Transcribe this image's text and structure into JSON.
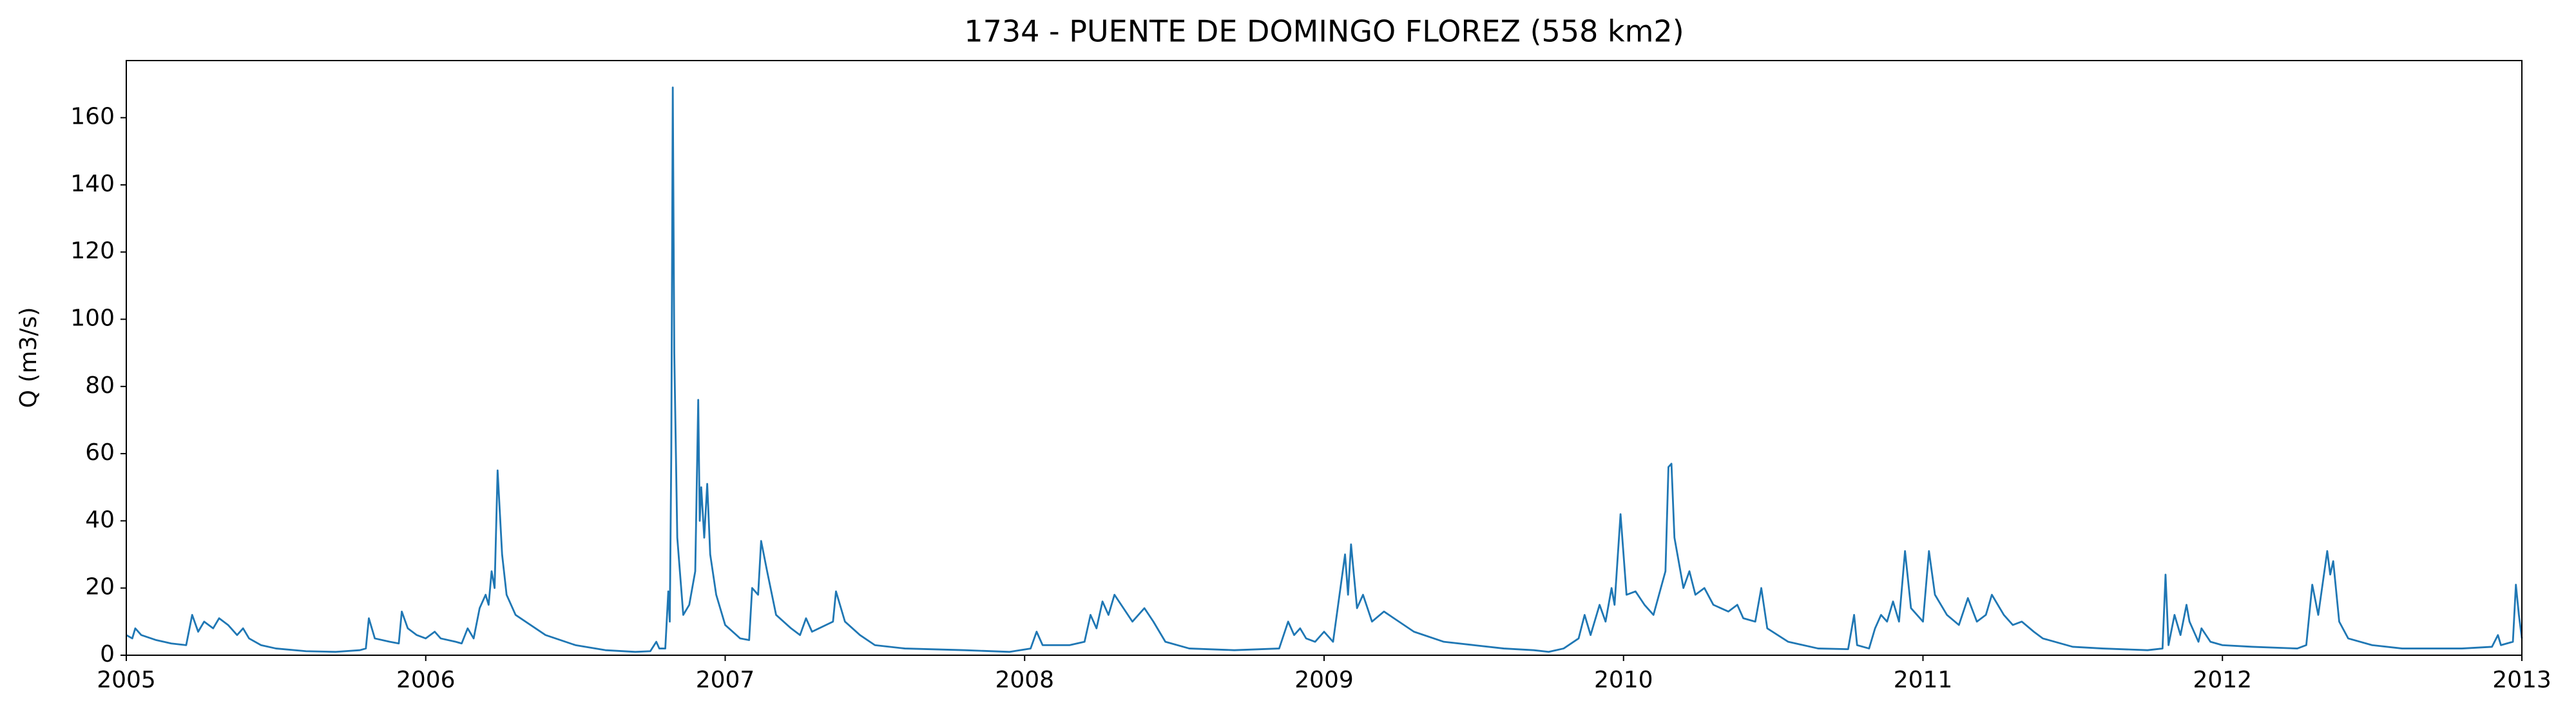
{
  "chart_data": {
    "type": "line",
    "title": "1734 - PUENTE DE DOMINGO FLOREZ (558 km2)",
    "ylabel": "Q (m3/s)",
    "color": "#1f77b4",
    "xlim": [
      2005,
      2013
    ],
    "xticks": [
      2005,
      2006,
      2007,
      2008,
      2009,
      2010,
      2011,
      2012,
      2013
    ],
    "ylim": [
      0,
      177
    ],
    "yticks": [
      0,
      20,
      40,
      60,
      80,
      100,
      120,
      140,
      160
    ],
    "x": [
      2005.0,
      2005.02,
      2005.03,
      2005.05,
      2005.1,
      2005.15,
      2005.2,
      2005.22,
      2005.24,
      2005.26,
      2005.29,
      2005.31,
      2005.34,
      2005.37,
      2005.39,
      2005.41,
      2005.45,
      2005.5,
      2005.6,
      2005.7,
      2005.78,
      2005.8,
      2005.81,
      2005.83,
      2005.88,
      2005.91,
      2005.92,
      2005.94,
      2005.97,
      2006.0,
      2006.03,
      2006.05,
      2006.1,
      2006.12,
      2006.14,
      2006.16,
      2006.18,
      2006.2,
      2006.21,
      2006.22,
      2006.23,
      2006.24,
      2006.255,
      2006.27,
      2006.3,
      2006.35,
      2006.4,
      2006.5,
      2006.6,
      2006.7,
      2006.75,
      2006.77,
      2006.78,
      2006.8,
      2006.81,
      2006.815,
      2006.82,
      2006.825,
      2006.83,
      2006.84,
      2006.86,
      2006.88,
      2006.9,
      2006.91,
      2006.915,
      2006.92,
      2006.93,
      2006.94,
      2006.95,
      2006.97,
      2007.0,
      2007.05,
      2007.08,
      2007.09,
      2007.11,
      2007.12,
      2007.14,
      2007.17,
      2007.22,
      2007.25,
      2007.27,
      2007.29,
      2007.36,
      2007.37,
      2007.4,
      2007.45,
      2007.5,
      2007.6,
      2007.8,
      2007.95,
      2008.02,
      2008.04,
      2008.06,
      2008.15,
      2008.2,
      2008.22,
      2008.24,
      2008.26,
      2008.28,
      2008.3,
      2008.33,
      2008.36,
      2008.4,
      2008.43,
      2008.47,
      2008.55,
      2008.7,
      2008.85,
      2008.88,
      2008.9,
      2008.92,
      2008.94,
      2008.97,
      2009.0,
      2009.03,
      2009.07,
      2009.08,
      2009.09,
      2009.11,
      2009.13,
      2009.16,
      2009.2,
      2009.25,
      2009.3,
      2009.4,
      2009.5,
      2009.6,
      2009.7,
      2009.75,
      2009.8,
      2009.85,
      2009.87,
      2009.89,
      2009.92,
      2009.94,
      2009.96,
      2009.97,
      2009.99,
      2010.01,
      2010.04,
      2010.07,
      2010.1,
      2010.14,
      2010.15,
      2010.16,
      2010.17,
      2010.2,
      2010.22,
      2010.24,
      2010.27,
      2010.3,
      2010.35,
      2010.38,
      2010.4,
      2010.44,
      2010.46,
      2010.48,
      2010.55,
      2010.65,
      2010.75,
      2010.77,
      2010.78,
      2010.82,
      2010.84,
      2010.86,
      2010.88,
      2010.9,
      2010.92,
      2010.94,
      2010.96,
      2011.0,
      2011.02,
      2011.04,
      2011.08,
      2011.12,
      2011.15,
      2011.18,
      2011.21,
      2011.23,
      2011.27,
      2011.3,
      2011.33,
      2011.37,
      2011.4,
      2011.5,
      2011.6,
      2011.75,
      2011.8,
      2011.81,
      2011.82,
      2011.84,
      2011.86,
      2011.88,
      2011.89,
      2011.92,
      2011.93,
      2011.96,
      2012.0,
      2012.1,
      2012.25,
      2012.28,
      2012.3,
      2012.32,
      2012.35,
      2012.36,
      2012.37,
      2012.39,
      2012.42,
      2012.5,
      2012.6,
      2012.8,
      2012.9,
      2012.92,
      2012.93,
      2012.97,
      2012.98,
      2012.99,
      2013.0
    ],
    "values": [
      6,
      5,
      8,
      6,
      4.5,
      3.5,
      3,
      12,
      7,
      10,
      8,
      11,
      9,
      6,
      8,
      5,
      3,
      2,
      1.2,
      1,
      1.5,
      2,
      11,
      5,
      4,
      3.5,
      13,
      8,
      6,
      5,
      7,
      5,
      4,
      3.5,
      8,
      5,
      14,
      18,
      15,
      25,
      20,
      55,
      30,
      18,
      12,
      9,
      6,
      3,
      1.5,
      1,
      1.2,
      4,
      2,
      2,
      19,
      10,
      60,
      169,
      90,
      35,
      12,
      15,
      25,
      76,
      40,
      50,
      35,
      51,
      30,
      18,
      9,
      5,
      4.5,
      20,
      18,
      34,
      25,
      12,
      8,
      6,
      11,
      7,
      10,
      19,
      10,
      6,
      3,
      2,
      1.5,
      1,
      2,
      7,
      3,
      3,
      4,
      12,
      8,
      16,
      12,
      18,
      14,
      10,
      14,
      10,
      4,
      2,
      1.5,
      2,
      10,
      6,
      8,
      5,
      4,
      7,
      4,
      30,
      18,
      33,
      14,
      18,
      10,
      13,
      10,
      7,
      4,
      3,
      2,
      1.5,
      1,
      2,
      5,
      12,
      6,
      15,
      10,
      20,
      15,
      42,
      18,
      19,
      15,
      12,
      25,
      56,
      57,
      35,
      20,
      25,
      18,
      20,
      15,
      13,
      15,
      11,
      10,
      20,
      8,
      4,
      2,
      1.8,
      12,
      3,
      2,
      8,
      12,
      10,
      16,
      10,
      31,
      14,
      10,
      31,
      18,
      12,
      9,
      17,
      10,
      12,
      18,
      12,
      9,
      10,
      7,
      5,
      2.5,
      2,
      1.5,
      2,
      24,
      3,
      12,
      6,
      15,
      10,
      4,
      8,
      4,
      3,
      2.5,
      2,
      3,
      21,
      12,
      31,
      24,
      28,
      10,
      5,
      3,
      2,
      2,
      2.5,
      6,
      3,
      4,
      21,
      12,
      5
    ]
  }
}
